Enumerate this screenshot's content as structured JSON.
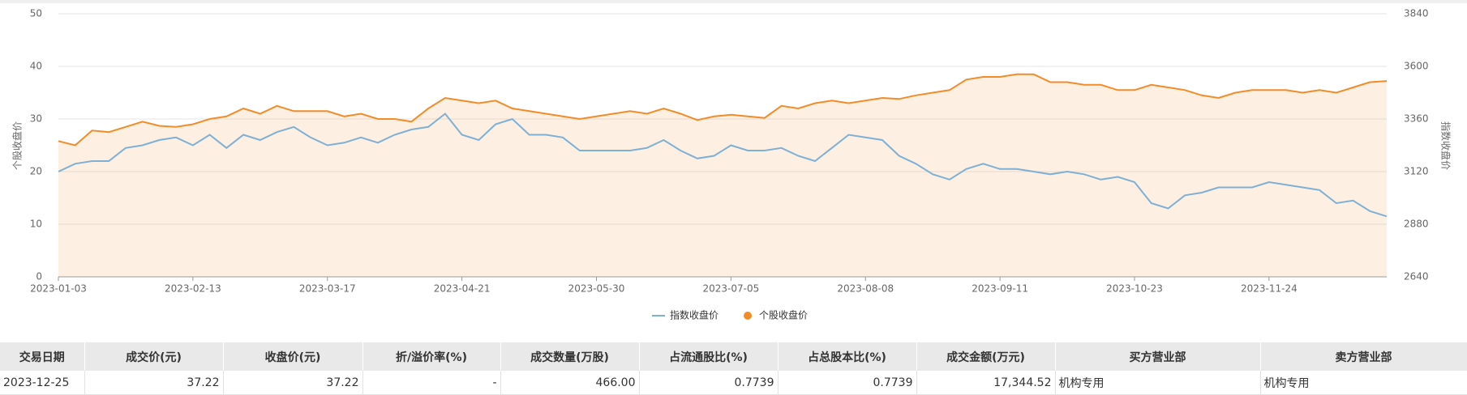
{
  "chart_data": {
    "type": "line",
    "y_label": "个股收盘价",
    "y2_label": "指数收盘价",
    "categories": [
      "2023-01-03",
      null,
      null,
      null,
      null,
      null,
      null,
      null,
      "2023-02-13",
      null,
      null,
      null,
      null,
      null,
      null,
      null,
      "2023-03-17",
      null,
      null,
      null,
      null,
      null,
      null,
      null,
      "2023-04-21",
      null,
      null,
      null,
      null,
      null,
      null,
      null,
      "2023-05-30",
      null,
      null,
      null,
      null,
      null,
      null,
      null,
      "2023-07-05",
      null,
      null,
      null,
      null,
      null,
      null,
      null,
      "2023-08-08",
      null,
      null,
      null,
      null,
      null,
      null,
      null,
      "2023-09-11",
      null,
      null,
      null,
      null,
      null,
      null,
      null,
      "2023-10-23",
      null,
      null,
      null,
      null,
      null,
      null,
      null,
      "2023-11-24",
      null,
      null,
      null,
      null,
      null,
      null,
      null
    ],
    "ylim": [
      0,
      50
    ],
    "yticks": [
      0,
      10,
      20,
      30,
      40,
      50
    ],
    "y2lim": [
      2640,
      3840
    ],
    "y2ticks": [
      2640,
      2880,
      3120,
      3360,
      3600,
      3840
    ],
    "grid": true,
    "legend": "bottom",
    "series": [
      {
        "name": "指数收盘价",
        "color": "#7eb0d5",
        "axis": "y2",
        "area": false,
        "values": [
          3120,
          3156,
          3168,
          3168,
          3228,
          3240,
          3264,
          3276,
          3240,
          3288,
          3228,
          3288,
          3264,
          3300,
          3324,
          3276,
          3240,
          3252,
          3276,
          3252,
          3288,
          3312,
          3324,
          3384,
          3288,
          3264,
          3336,
          3360,
          3288,
          3288,
          3276,
          3216,
          3216,
          3216,
          3216,
          3228,
          3264,
          3216,
          3180,
          3192,
          3240,
          3216,
          3216,
          3228,
          3192,
          3168,
          3228,
          3288,
          3276,
          3264,
          3192,
          3156,
          3108,
          3084,
          3132,
          3156,
          3132,
          3132,
          3120,
          3108,
          3120,
          3108,
          3084,
          3096,
          3072,
          2976,
          2952,
          3012,
          3024,
          3048,
          3048,
          3048,
          3072,
          3060,
          3048,
          3036,
          2976,
          2988,
          2940,
          2916
        ]
      },
      {
        "name": "个股收盘价",
        "color": "#f28c28",
        "axis": "y",
        "area": true,
        "values": [
          25.8,
          25,
          27.8,
          27.5,
          28.5,
          29.5,
          28.7,
          28.5,
          29,
          30,
          30.5,
          32,
          31,
          32.5,
          31.5,
          31.5,
          31.5,
          30.5,
          31,
          30,
          30,
          29.5,
          32,
          34,
          33.5,
          33,
          33.5,
          32,
          31.5,
          31,
          30.5,
          30,
          30.5,
          31,
          31.5,
          31,
          32,
          31,
          29.8,
          30.5,
          30.8,
          30.5,
          30.2,
          32.5,
          32,
          33,
          33.5,
          33,
          33.5,
          34,
          33.8,
          34.5,
          35,
          35.5,
          37.5,
          38,
          38,
          38.5,
          38.5,
          37,
          37,
          36.5,
          36.5,
          35.5,
          35.5,
          36.5,
          36,
          35.5,
          34.5,
          34,
          35,
          35.5,
          35.5,
          35.5,
          35,
          35.5,
          35,
          36,
          37,
          37.22
        ]
      }
    ]
  },
  "table": {
    "headers": [
      "交易日期",
      "成交价(元)",
      "收盘价(元)",
      "折/溢价率(%)",
      "成交数量(万股)",
      "占流通股比(%)",
      "占总股本比(%)",
      "成交金额(万元)",
      "买方营业部",
      "卖方营业部"
    ],
    "rows": [
      [
        "2023-12-25",
        "37.22",
        "37.22",
        "-",
        "466.00",
        "0.7739",
        "0.7739",
        "17,344.52",
        "机构专用",
        "机构专用"
      ]
    ]
  }
}
